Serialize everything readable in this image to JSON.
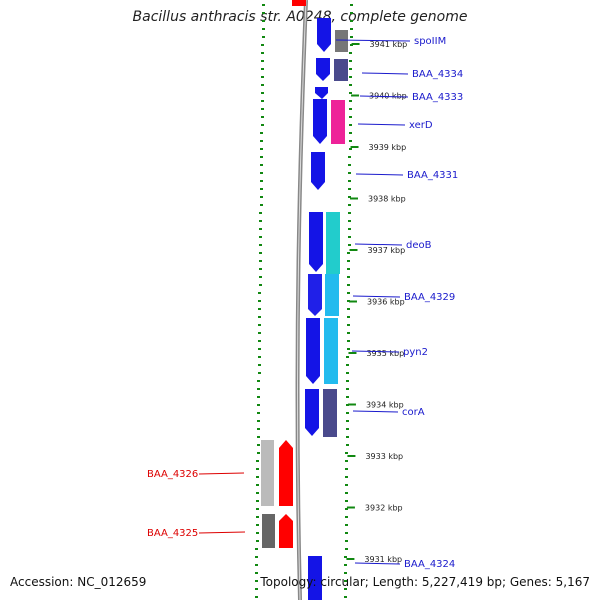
{
  "title": "Bacillus anthracis str. A0248, complete genome",
  "accession": "Accession: NC_012659",
  "topology": "Topology: circular; Length: 5,227,419 bp; Genes: 5,167",
  "colors": {
    "forward": "#1414e6",
    "forward_light": "#5a5ae8",
    "backbone": "#888888",
    "gc_dots": "#118811",
    "red": "#ff0000",
    "magenta": "#ee2299",
    "teal": "#22cccc",
    "sky": "#22bbee",
    "slate": "#4a4a8c",
    "darkgray": "#666666",
    "lightgray": "#bbbbbb",
    "label_blue": "#1a1acc",
    "label_red": "#dd0000"
  },
  "ticks": [
    {
      "label": "3941 kbp",
      "y": 3941
    },
    {
      "label": "3940 kbp",
      "y": 3940
    },
    {
      "label": "3939 kbp",
      "y": 3939
    },
    {
      "label": "3938 kbp",
      "y": 3938
    },
    {
      "label": "3937 kbp",
      "y": 3937
    },
    {
      "label": "3936 kbp",
      "y": 3936
    },
    {
      "label": "3935 kbp",
      "y": 3935
    },
    {
      "label": "3934 kbp",
      "y": 3934
    },
    {
      "label": "3933 kbp",
      "y": 3933
    },
    {
      "label": "3932 kbp",
      "y": 3932
    },
    {
      "label": "3931 kbp",
      "y": 3931
    }
  ],
  "gene_labels": [
    {
      "name": "spoIIM",
      "strand": "forward"
    },
    {
      "name": "BAA_4334",
      "strand": "forward"
    },
    {
      "name": "BAA_4333",
      "strand": "forward"
    },
    {
      "name": "xerD",
      "strand": "forward"
    },
    {
      "name": "BAA_4331",
      "strand": "forward"
    },
    {
      "name": "deoB",
      "strand": "forward"
    },
    {
      "name": "BAA_4329",
      "strand": "forward"
    },
    {
      "name": "pyn2",
      "strand": "forward"
    },
    {
      "name": "corA",
      "strand": "forward"
    },
    {
      "name": "BAA_4326",
      "strand": "reverse"
    },
    {
      "name": "BAA_4325",
      "strand": "reverse"
    },
    {
      "name": "BAA_4324",
      "strand": "forward"
    }
  ]
}
